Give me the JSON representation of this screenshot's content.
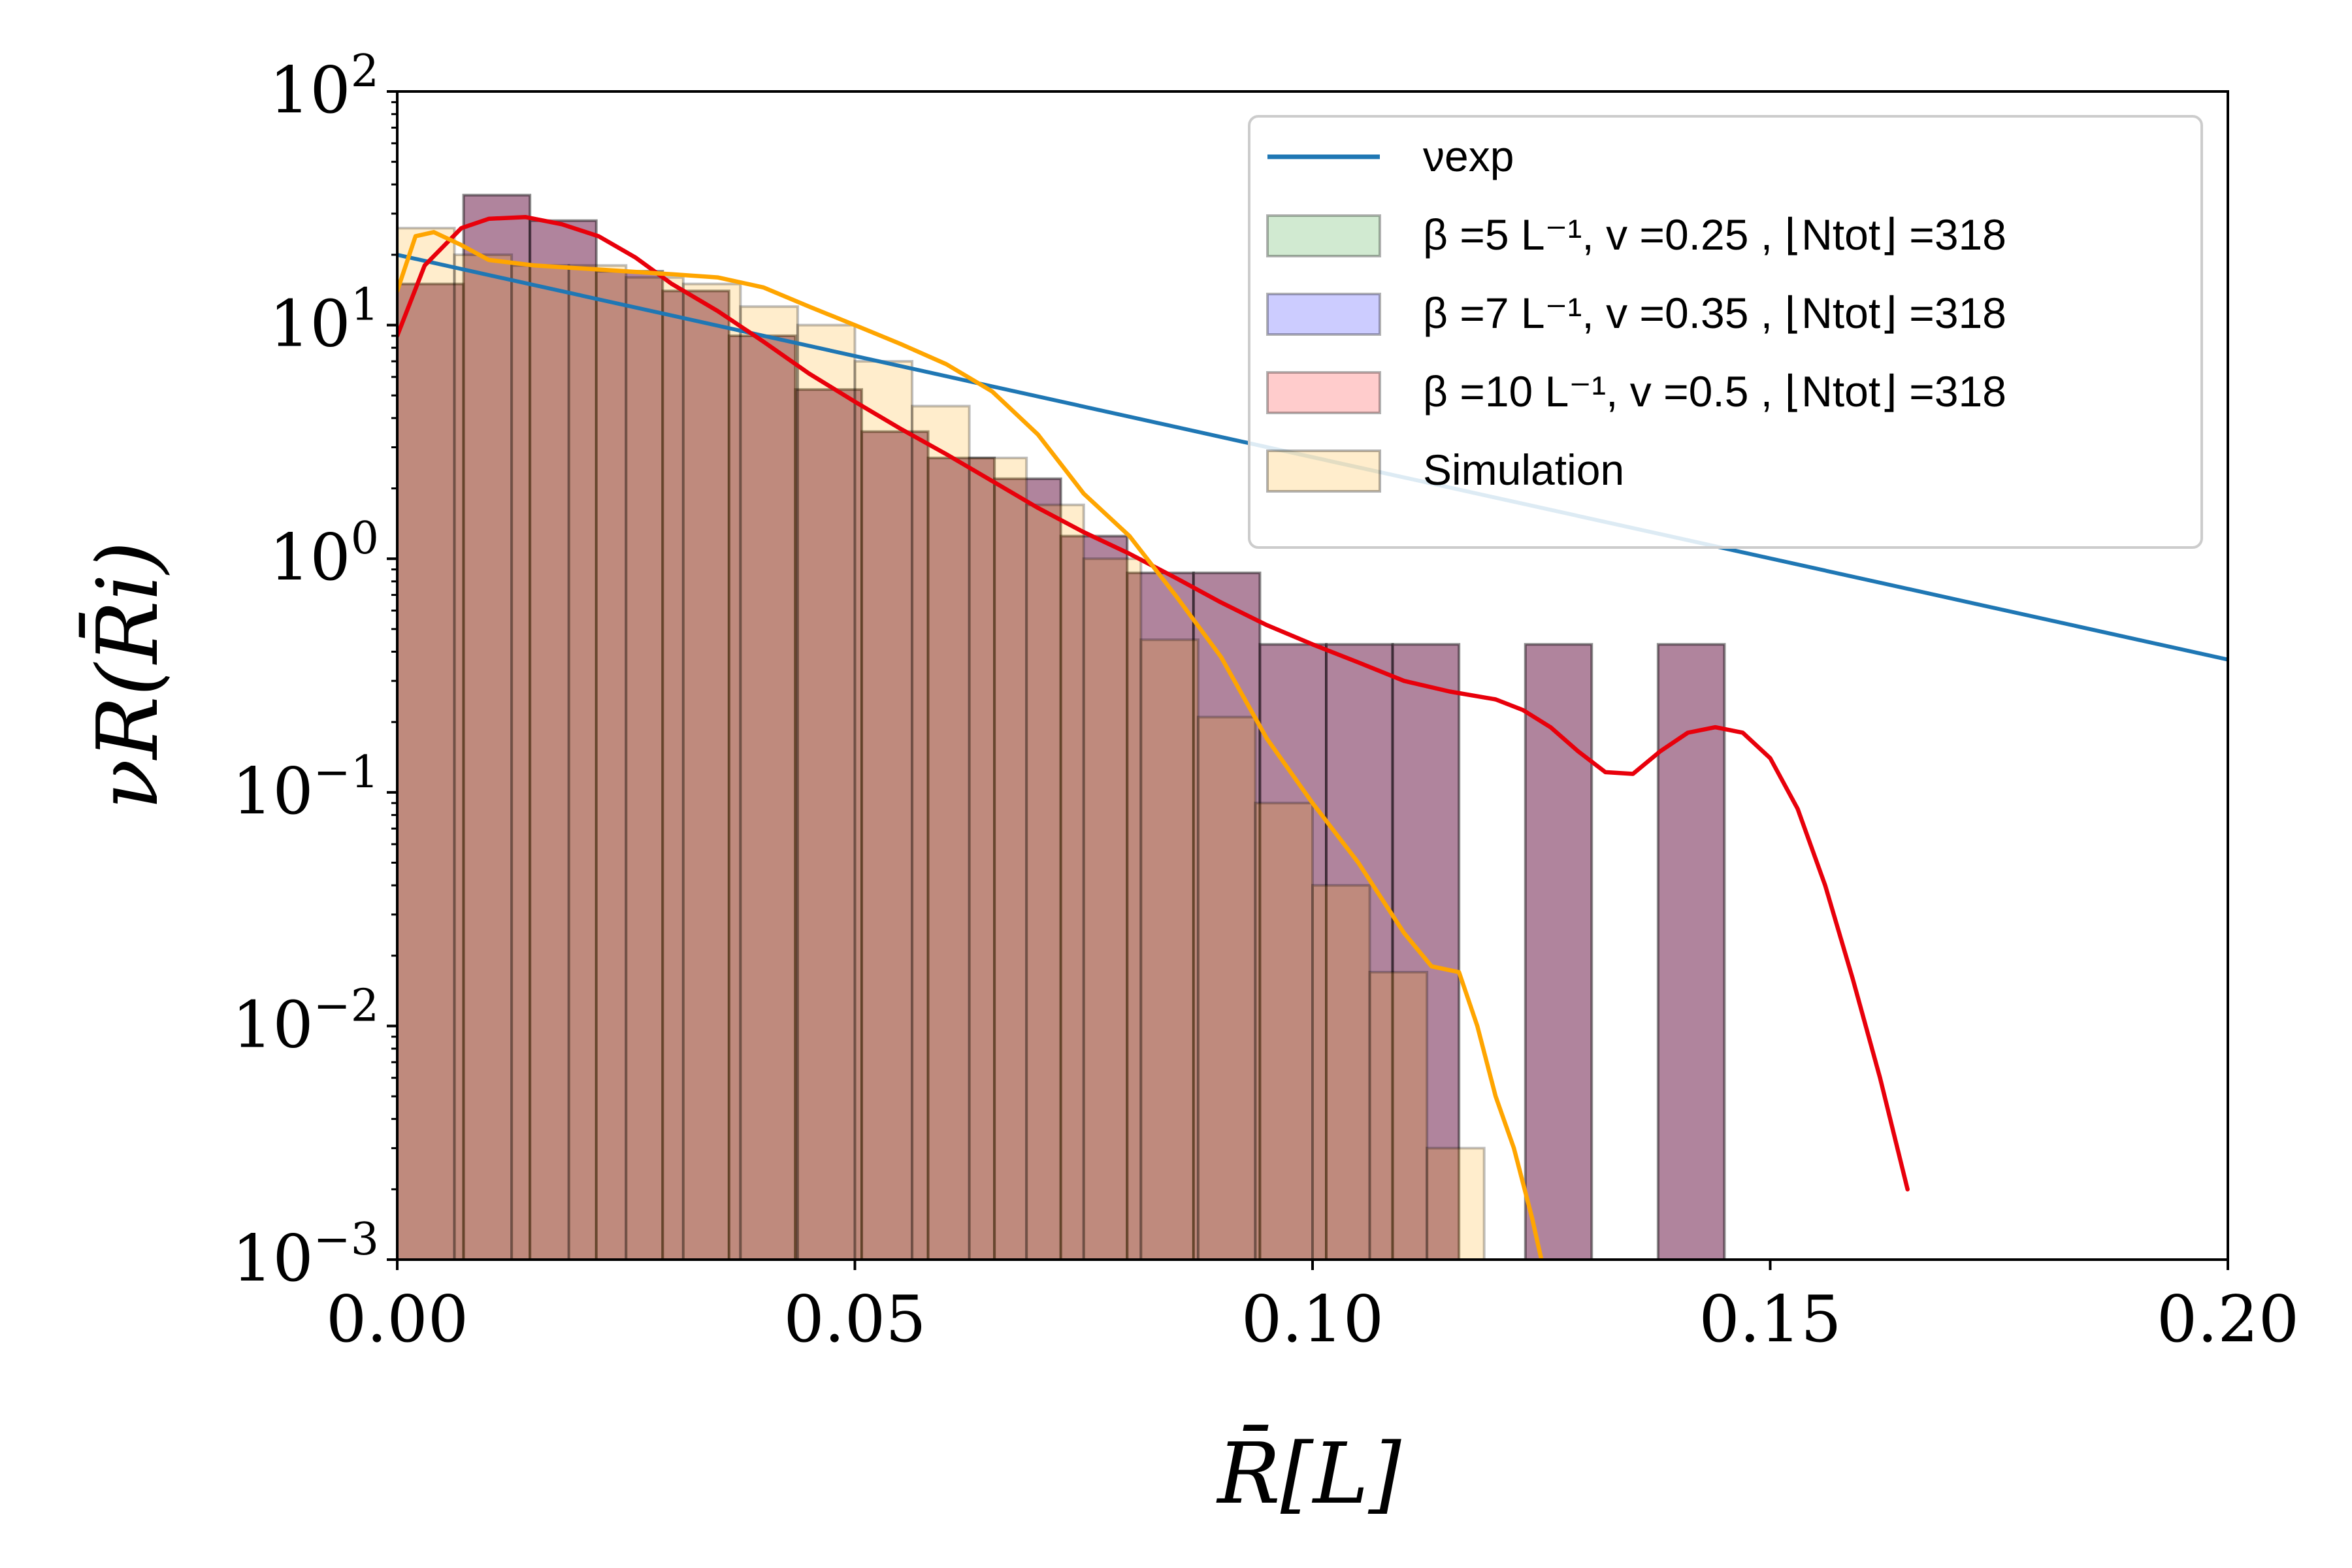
{
  "chart_data": {
    "type": "histogram",
    "xlabel": "R̄[L]",
    "ylabel": "νR(R̄i)",
    "xlim": [
      0,
      0.2
    ],
    "ylim": [
      0.001,
      100
    ],
    "yscale": "log",
    "x_ticks": [
      {
        "value": 0.0,
        "label": "0.00"
      },
      {
        "value": 0.05,
        "label": "0.05"
      },
      {
        "value": 0.1,
        "label": "0.10"
      },
      {
        "value": 0.15,
        "label": "0.15"
      },
      {
        "value": 0.2,
        "label": "0.20"
      }
    ],
    "y_ticks": [
      {
        "value": 0.001,
        "base": "10",
        "exp": "−3"
      },
      {
        "value": 0.01,
        "base": "10",
        "exp": "−2"
      },
      {
        "value": 0.1,
        "base": "10",
        "exp": "−1"
      },
      {
        "value": 1,
        "base": "10",
        "exp": "0"
      },
      {
        "value": 10,
        "base": "10",
        "exp": "1"
      },
      {
        "value": 100,
        "base": "10",
        "exp": "2"
      }
    ],
    "legend": {
      "placement": "upper-right",
      "entries": [
        {
          "key": "exp",
          "kind": "line",
          "color": "#1f77b4",
          "label": "νexp"
        },
        {
          "key": "b5",
          "kind": "patch",
          "color": "#2ca02c",
          "label": "β =5 L⁻¹, v =0.25 , ⌊Ntot⌋ =318"
        },
        {
          "key": "b7",
          "kind": "patch",
          "color": "#0000ff",
          "label": "β =7 L⁻¹, v =0.35 , ⌊Ntot⌋ =318"
        },
        {
          "key": "b10",
          "kind": "patch",
          "color": "#ff0000",
          "label": "β =10 L⁻¹, v =0.5 , ⌊Ntot⌋ =318"
        },
        {
          "key": "sim",
          "kind": "patch",
          "color": "#ffa500",
          "label": "Simulation"
        }
      ]
    },
    "series": [
      {
        "name": "β =10 L⁻¹, v =0.5 (histogram, overlapping β=5 and β=7)",
        "kind": "histogram",
        "color": "#8b4a6e",
        "bin_edges": [
          0,
          0.00725,
          0.0145,
          0.02175,
          0.029,
          0.03625,
          0.0435,
          0.05075,
          0.058,
          0.06525,
          0.0725,
          0.07975,
          0.087,
          0.09425,
          0.1015,
          0.10875,
          0.116,
          0.12325,
          0.1305,
          0.13775,
          0.145
        ],
        "values": [
          15,
          36,
          28,
          17,
          14,
          9,
          5.3,
          3.5,
          2.7,
          2.2,
          1.25,
          0.87,
          0.87,
          0.43,
          0.43,
          0.43,
          0,
          0.43,
          0,
          0.43
        ]
      },
      {
        "name": "Simulation",
        "kind": "histogram",
        "color": "#ffa500",
        "bin_edges": [
          0,
          0.00625,
          0.0125,
          0.01875,
          0.025,
          0.03125,
          0.0375,
          0.04375,
          0.05,
          0.05625,
          0.0625,
          0.06875,
          0.075,
          0.08125,
          0.0875,
          0.09375,
          0.1,
          0.10625,
          0.1125,
          0.11875,
          0.125
        ],
        "values": [
          26,
          20,
          18,
          18,
          16,
          15,
          12,
          10,
          7,
          4.5,
          2.7,
          1.7,
          1.0,
          0.45,
          0.21,
          0.09,
          0.04,
          0.017,
          0.003,
          0
        ]
      },
      {
        "name": "νexp",
        "kind": "line",
        "color": "#1f77b4",
        "x": [
          0,
          0.2
        ],
        "y": [
          20,
          0.37
        ]
      },
      {
        "name": "red curve",
        "kind": "line",
        "color": "#e8000b",
        "x": [
          0,
          0.003,
          0.007,
          0.01,
          0.014,
          0.018,
          0.022,
          0.026,
          0.03,
          0.035,
          0.04,
          0.045,
          0.05,
          0.055,
          0.06,
          0.065,
          0.07,
          0.075,
          0.08,
          0.085,
          0.09,
          0.095,
          0.1,
          0.105,
          0.11,
          0.115,
          0.12,
          0.123,
          0.126,
          0.129,
          0.132,
          0.135,
          0.138,
          0.141,
          0.144,
          0.147,
          0.15,
          0.153,
          0.156,
          0.159,
          0.162,
          0.165
        ],
        "y": [
          9,
          18,
          26,
          28.5,
          29,
          27,
          24,
          19.5,
          15,
          11.5,
          8.5,
          6.2,
          4.7,
          3.6,
          2.8,
          2.15,
          1.65,
          1.3,
          1.05,
          0.83,
          0.65,
          0.52,
          0.43,
          0.36,
          0.3,
          0.27,
          0.25,
          0.225,
          0.19,
          0.15,
          0.122,
          0.12,
          0.15,
          0.18,
          0.19,
          0.18,
          0.14,
          0.085,
          0.04,
          0.016,
          0.006,
          0.002
        ]
      },
      {
        "name": "orange curve",
        "kind": "line",
        "color": "#ffa500",
        "x": [
          0,
          0.002,
          0.004,
          0.007,
          0.01,
          0.015,
          0.02,
          0.025,
          0.03,
          0.035,
          0.04,
          0.045,
          0.05,
          0.055,
          0.06,
          0.065,
          0.07,
          0.075,
          0.08,
          0.085,
          0.09,
          0.095,
          0.1,
          0.105,
          0.11,
          0.113,
          0.116,
          0.118,
          0.12,
          0.122,
          0.124,
          0.125
        ],
        "y": [
          14,
          24,
          25,
          22,
          19,
          18,
          17.5,
          17,
          16.5,
          16,
          14.5,
          12,
          10,
          8.3,
          6.8,
          5.2,
          3.4,
          1.9,
          1.25,
          0.7,
          0.38,
          0.17,
          0.09,
          0.05,
          0.025,
          0.018,
          0.017,
          0.01,
          0.005,
          0.003,
          0.0015,
          0.001
        ]
      }
    ]
  }
}
